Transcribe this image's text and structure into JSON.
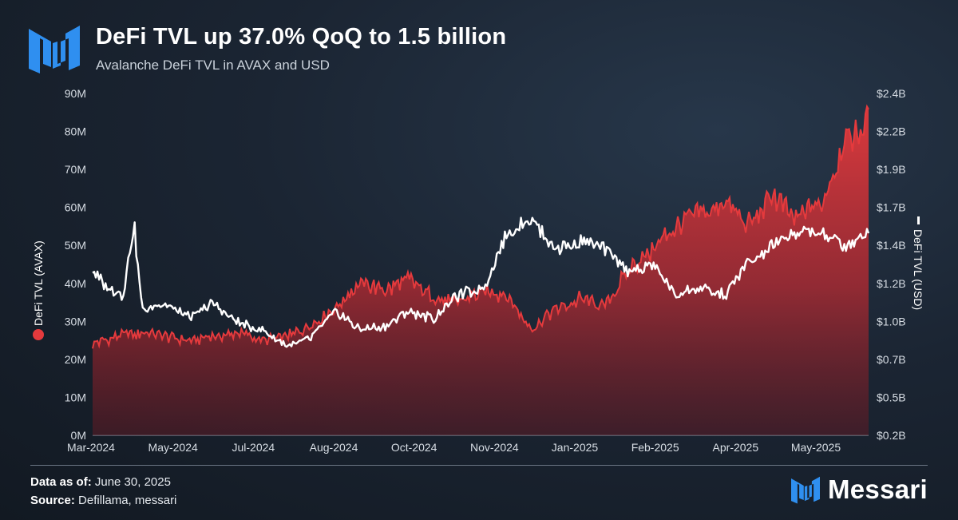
{
  "header": {
    "title": "DeFi TVL up 37.0% QoQ to 1.5 billion",
    "subtitle": "Avalanche DeFi TVL in AVAX and USD",
    "logo_icon": "messari-m-icon"
  },
  "footer": {
    "data_as_of_label": "Data as of:",
    "data_as_of_value": "June 30, 2025",
    "source_label": "Source:",
    "source_value": "Defillama, messari",
    "brand_name": "Messari",
    "brand_icon": "messari-m-icon"
  },
  "colors": {
    "avax_series": "#e53a3d",
    "usd_series": "#ffffff",
    "logo_blue": "#2f8ff0"
  },
  "chart_data": {
    "type": "area",
    "grid": false,
    "legend": "axis-titles",
    "x_ticks": [
      "Mar-2024",
      "May-2024",
      "Jul-2024",
      "Aug-2024",
      "Oct-2024",
      "Nov-2024",
      "Jan-2025",
      "Feb-2025",
      "Apr-2025",
      "May-2025"
    ],
    "y_left": {
      "label": "DeFi TVL (AVAX)",
      "ticks": [
        "0M",
        "10M",
        "20M",
        "30M",
        "40M",
        "50M",
        "60M",
        "70M",
        "80M",
        "90M"
      ],
      "range": [
        0,
        90000000
      ]
    },
    "y_right": {
      "label": "DeFi TVL (USD)",
      "ticks": [
        "$0.2B",
        "$0.5B",
        "$0.7B",
        "$1.0B",
        "$1.2B",
        "$1.4B",
        "$1.7B",
        "$1.9B",
        "$2.2B",
        "$2.4B"
      ],
      "range": [
        0.2,
        2.4
      ]
    },
    "series": [
      {
        "name": "DeFi TVL (AVAX)",
        "type": "area",
        "axis": "left",
        "x": [
          "2024-03-01",
          "2024-03-15",
          "2024-04-01",
          "2024-04-15",
          "2024-05-01",
          "2024-05-15",
          "2024-06-01",
          "2024-06-15",
          "2024-07-01",
          "2024-07-15",
          "2024-08-01",
          "2024-08-15",
          "2024-09-01",
          "2024-09-15",
          "2024-10-01",
          "2024-10-15",
          "2024-11-01",
          "2024-11-15",
          "2024-12-01",
          "2024-12-15",
          "2025-01-01",
          "2025-01-15",
          "2025-02-01",
          "2025-02-15",
          "2025-03-01",
          "2025-03-15",
          "2025-04-01",
          "2025-04-15",
          "2025-05-01",
          "2025-05-15",
          "2025-06-01",
          "2025-06-15",
          "2025-06-30"
        ],
        "values": [
          24000000,
          26000000,
          27000000,
          26000000,
          25000000,
          26000000,
          27000000,
          25000000,
          26000000,
          29000000,
          34000000,
          40000000,
          38000000,
          41000000,
          36000000,
          35000000,
          38000000,
          37000000,
          28000000,
          33000000,
          36000000,
          34000000,
          44000000,
          49000000,
          55000000,
          58000000,
          61000000,
          55000000,
          63000000,
          57000000,
          61000000,
          78000000,
          83000000
        ]
      },
      {
        "name": "DeFi TVL (USD)",
        "type": "line",
        "axis": "right",
        "x": [
          "2024-03-01",
          "2024-03-10",
          "2024-03-20",
          "2024-03-27",
          "2024-04-01",
          "2024-04-15",
          "2024-05-01",
          "2024-05-15",
          "2024-06-01",
          "2024-06-15",
          "2024-07-01",
          "2024-07-15",
          "2024-08-01",
          "2024-08-15",
          "2024-09-01",
          "2024-09-15",
          "2024-10-01",
          "2024-10-15",
          "2024-11-01",
          "2024-11-15",
          "2024-12-01",
          "2024-12-15",
          "2025-01-01",
          "2025-01-15",
          "2025-02-01",
          "2025-02-15",
          "2025-03-01",
          "2025-03-15",
          "2025-04-01",
          "2025-04-15",
          "2025-05-01",
          "2025-05-15",
          "2025-06-01",
          "2025-06-15",
          "2025-06-30"
        ],
        "values": [
          1.25,
          1.15,
          1.1,
          1.55,
          1.0,
          1.05,
          0.95,
          1.05,
          0.92,
          0.88,
          0.78,
          0.82,
          1.0,
          0.88,
          0.9,
          1.0,
          0.95,
          1.1,
          1.15,
          1.48,
          1.6,
          1.4,
          1.45,
          1.4,
          1.25,
          1.3,
          1.1,
          1.15,
          1.1,
          1.3,
          1.42,
          1.5,
          1.5,
          1.42,
          1.5
        ]
      }
    ]
  }
}
